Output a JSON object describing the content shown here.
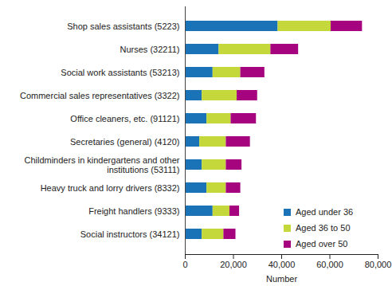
{
  "chart_data": {
    "type": "bar",
    "orientation": "horizontal",
    "stacked": true,
    "grid": false,
    "legend": "lower right",
    "xlabel": "Number",
    "categories": [
      "Shop sales assistants (5223)",
      "Nurses (32211)",
      "Social work assistants (53213)",
      "Commercial sales representatives (3322)",
      "Office cleaners, etc. (91121)",
      "Secretaries (general) (4120)",
      "Childminders in kindergartens and other institutions (53111)",
      "Heavy truck and lorry drivers (8332)",
      "Freight handlers (9333)",
      "Social instructors (34121)"
    ],
    "series": [
      {
        "name": "Aged under 36",
        "color": "#1a73b7",
        "values": [
          38500,
          14000,
          11500,
          7000,
          9000,
          6000,
          7000,
          9000,
          11500,
          7000
        ]
      },
      {
        "name": "Aged 36 to 50",
        "color": "#c4d83b",
        "values": [
          22000,
          21500,
          11500,
          14500,
          10000,
          11000,
          10000,
          8000,
          7000,
          9000
        ]
      },
      {
        "name": "Aged over 50",
        "color": "#a6037f",
        "values": [
          13000,
          11500,
          10000,
          8500,
          10500,
          10000,
          6500,
          6000,
          4000,
          5000
        ]
      }
    ],
    "xlim": [
      0,
      80000
    ],
    "xticks": [
      0,
      {
        "value": 20000,
        "label": "20,000"
      },
      {
        "value": 40000,
        "label": "40,000"
      },
      {
        "value": 60000,
        "label": "60,000"
      },
      {
        "value": 80000,
        "label": "80,000"
      }
    ]
  }
}
